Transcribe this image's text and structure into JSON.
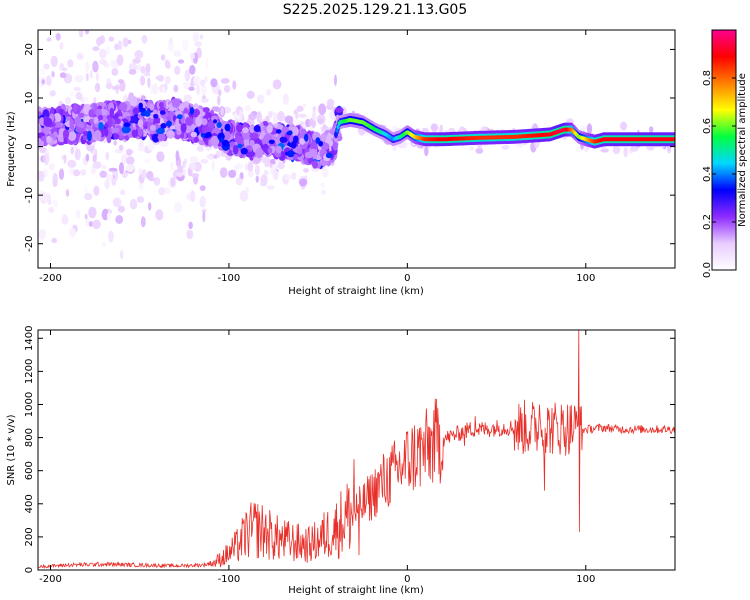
{
  "title": "S225.2025.129.21.13.G05",
  "chart_data": [
    {
      "type": "heatmap",
      "xlabel": "Height of straight line (km)",
      "ylabel": "Frequency (Hz)",
      "xlim": [
        -207,
        150
      ],
      "ylim": [
        -25,
        24
      ],
      "xticks": [
        -200,
        -100,
        0,
        100
      ],
      "yticks": [
        -20,
        -10,
        0,
        10,
        20
      ],
      "colorbar": {
        "label": "Normalized spectral amplitude",
        "range": [
          0,
          1
        ],
        "ticks": [
          "0.0",
          "0.2",
          "0.4",
          "0.6",
          "0.8"
        ],
        "colors": [
          "#ffffff",
          "#e9ccff",
          "#8d2bff",
          "#0000ff",
          "#00d8ff",
          "#00ff40",
          "#ffff00",
          "#ff8000",
          "#ff0000",
          "#ff0090"
        ]
      },
      "ridge": {
        "x": [
          -205,
          -190,
          -175,
          -160,
          -150,
          -140,
          -130,
          -120,
          -110,
          -100,
          -90,
          -80,
          -70,
          -60,
          -50,
          -42,
          -38,
          -32,
          -25,
          -18,
          -12,
          -8,
          -4,
          0,
          4,
          10,
          20,
          40,
          60,
          80,
          88,
          92,
          96,
          100,
          105,
          110,
          130,
          150
        ],
        "y": [
          4,
          4.5,
          5,
          5.5,
          6,
          5,
          6,
          5,
          4,
          2,
          1,
          1.5,
          1,
          0.5,
          -1,
          0,
          5,
          5.5,
          5,
          3.5,
          2.5,
          1.5,
          2,
          3,
          2,
          1.5,
          1.5,
          1.8,
          2,
          2.5,
          3.5,
          3.5,
          2,
          1.5,
          1,
          1.5,
          1.5,
          1.5
        ],
        "amplitude": [
          0.1,
          0.12,
          0.12,
          0.14,
          0.2,
          0.15,
          0.18,
          0.15,
          0.14,
          0.14,
          0.16,
          0.18,
          0.2,
          0.18,
          0.25,
          0.2,
          0.5,
          0.6,
          0.6,
          0.55,
          0.45,
          0.4,
          0.5,
          0.6,
          0.7,
          0.85,
          0.9,
          0.85,
          0.85,
          0.9,
          0.95,
          0.8,
          0.6,
          0.7,
          0.85,
          0.9,
          0.9,
          0.9
        ]
      }
    },
    {
      "type": "line",
      "xlabel": "Height of straight line (km)",
      "ylabel": "SNR (10 * v/v)",
      "xlim": [
        -207,
        150
      ],
      "ylim": [
        0,
        1450
      ],
      "xticks": [
        -200,
        -100,
        0,
        100
      ],
      "yticks": [
        0,
        200,
        400,
        600,
        800,
        1000,
        1200,
        1400
      ],
      "series": [
        {
          "color": "#e8302a",
          "x": [
            -207,
            -190,
            -170,
            -150,
            -130,
            -115,
            -108,
            -100,
            -95,
            -90,
            -85,
            -80,
            -75,
            -70,
            -65,
            -60,
            -55,
            -50,
            -45,
            -40,
            -36,
            -33,
            -30,
            -25,
            -20,
            -15,
            -10,
            -5,
            0,
            5,
            10,
            15,
            20,
            25,
            30,
            35,
            40,
            45,
            50,
            55,
            60,
            65,
            70,
            75,
            80,
            85,
            90,
            95,
            97,
            100,
            110,
            120,
            130,
            140,
            150
          ],
          "y": [
            20,
            30,
            35,
            30,
            25,
            30,
            45,
            100,
            150,
            220,
            250,
            230,
            200,
            180,
            170,
            160,
            150,
            180,
            220,
            250,
            300,
            330,
            350,
            390,
            450,
            520,
            560,
            610,
            660,
            700,
            720,
            770,
            790,
            810,
            830,
            850,
            850,
            850,
            860,
            860,
            860,
            860,
            860,
            860,
            860,
            860,
            860,
            860,
            840,
            850,
            860,
            850,
            850,
            850,
            850
          ],
          "spikes": [
            {
              "x": -30,
              "y": 670
            },
            {
              "x": -27,
              "y": 90
            },
            {
              "x": 32,
              "y": 750
            },
            {
              "x": 38,
              "y": 930
            },
            {
              "x": 74,
              "y": 1000
            },
            {
              "x": 82,
              "y": 950
            },
            {
              "x": 96,
              "y": 1460
            },
            {
              "x": 96.5,
              "y": 230
            },
            {
              "x": 77,
              "y": 480
            }
          ]
        }
      ]
    }
  ]
}
